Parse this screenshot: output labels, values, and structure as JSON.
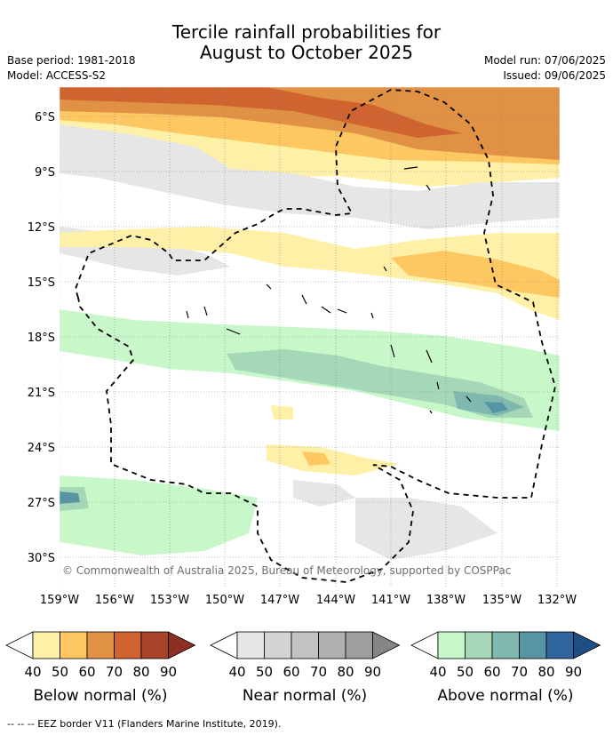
{
  "title": {
    "line1": "Tercile rainfall probabilities for",
    "line2": "August to October 2025"
  },
  "meta": {
    "base_period": "Base period: 1981-2018",
    "model": "Model: ACCESS-S2",
    "model_run": "Model run: 07/06/2025",
    "issued": "Issued: 09/06/2025"
  },
  "map": {
    "lat_labels": [
      "6°S",
      "9°S",
      "12°S",
      "15°S",
      "18°S",
      "21°S",
      "24°S",
      "27°S",
      "30°S"
    ],
    "lon_labels": [
      "159°W",
      "156°W",
      "153°W",
      "150°W",
      "147°W",
      "144°W",
      "141°W",
      "138°W",
      "135°W",
      "132°W"
    ],
    "copyright": "© Commonwealth of Australia 2025, Bureau of Meteorology, supported by COSPPac"
  },
  "legends": [
    {
      "id": "below",
      "label": "Below normal (%)",
      "ticks": [
        "40",
        "50",
        "60",
        "70",
        "80",
        "90"
      ],
      "colors": [
        "#fff0a8",
        "#fdc862",
        "#e09143",
        "#cf6430",
        "#a74428",
        "#8a2f22"
      ]
    },
    {
      "id": "near",
      "label": "Near normal (%)",
      "ticks": [
        "40",
        "50",
        "60",
        "70",
        "80",
        "90"
      ],
      "colors": [
        "#e6e6e6",
        "#d4d4d4",
        "#c2c2c2",
        "#b0b0b0",
        "#9e9e9e",
        "#858585"
      ]
    },
    {
      "id": "above",
      "label": "Above normal (%)",
      "ticks": [
        "40",
        "50",
        "60",
        "70",
        "80",
        "90"
      ],
      "colors": [
        "#c8f7c9",
        "#a4d8b6",
        "#7fb8af",
        "#5895a4",
        "#2f66a0",
        "#1d4f85"
      ]
    }
  ],
  "footnote": "-- -- -- EEZ border V11 (Flanders Marine Institute, 2019)."
}
